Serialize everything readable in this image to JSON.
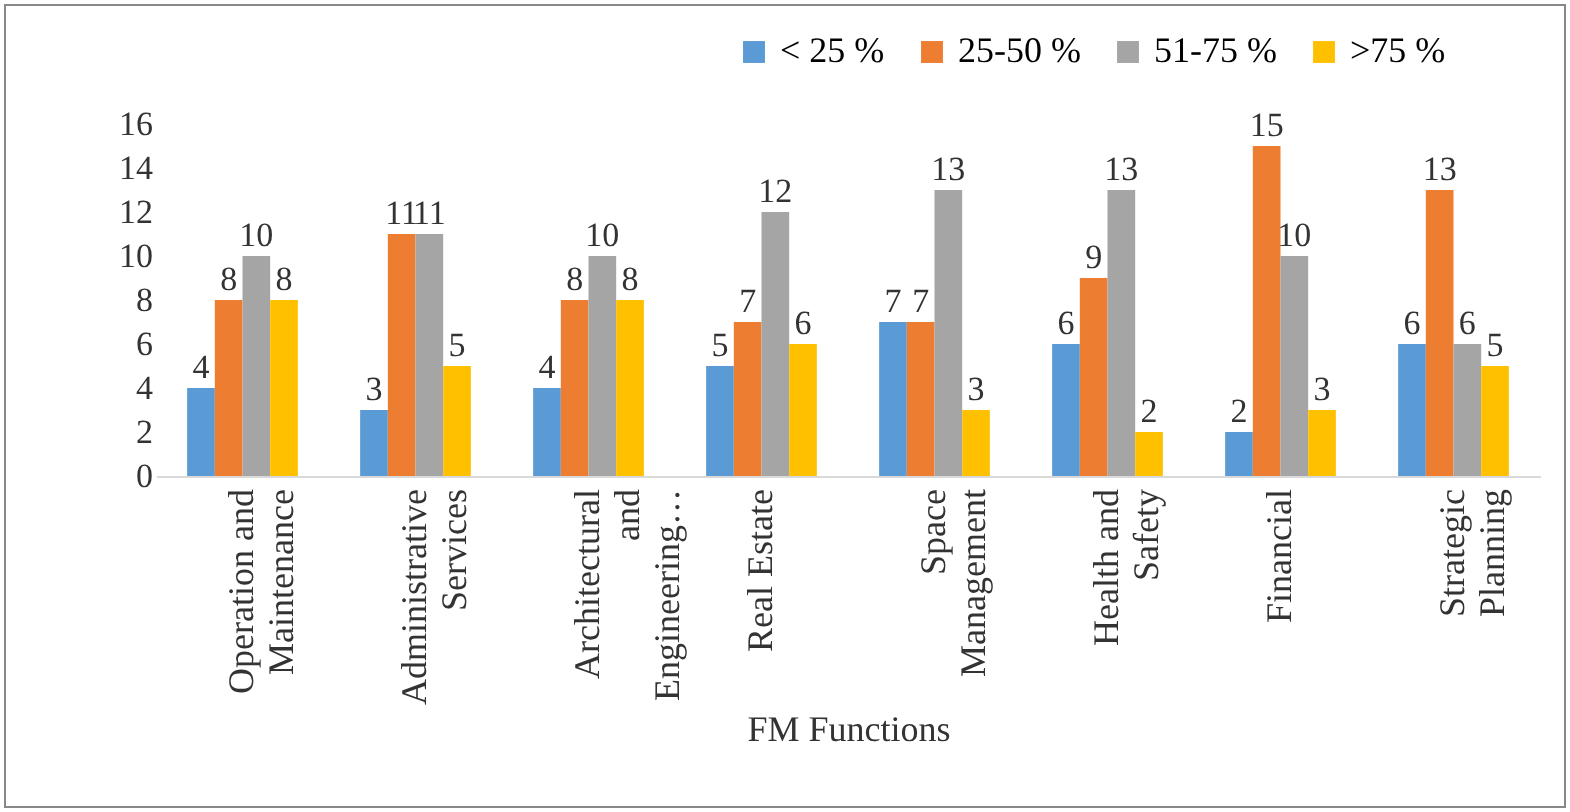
{
  "chart_data": {
    "type": "bar",
    "xlabel": "FM Functions",
    "categories": [
      "Operation and Maintenance",
      "Administrative Services",
      "Architectural and Engineering…",
      "Real Estate",
      "Space Management",
      "Health and Safety",
      "Financial",
      "Strategic Planning"
    ],
    "series": [
      {
        "name": "< 25 %",
        "color": "#5b9bd5",
        "values": [
          4,
          3,
          4,
          5,
          7,
          6,
          2,
          6
        ]
      },
      {
        "name": "25-50 %",
        "color": "#ed7d31",
        "values": [
          8,
          11,
          8,
          7,
          7,
          9,
          15,
          13
        ]
      },
      {
        "name": "51-75 %",
        "color": "#a5a5a5",
        "values": [
          10,
          11,
          10,
          12,
          13,
          13,
          10,
          6
        ]
      },
      {
        "name": ">75 %",
        "color": "#ffc000",
        "values": [
          8,
          5,
          8,
          6,
          3,
          2,
          3,
          5
        ]
      }
    ],
    "ylim": [
      0,
      16
    ],
    "yticks": [
      0,
      2,
      4,
      6,
      8,
      10,
      12,
      14,
      16
    ],
    "data_labels": true,
    "legend": "top right"
  }
}
